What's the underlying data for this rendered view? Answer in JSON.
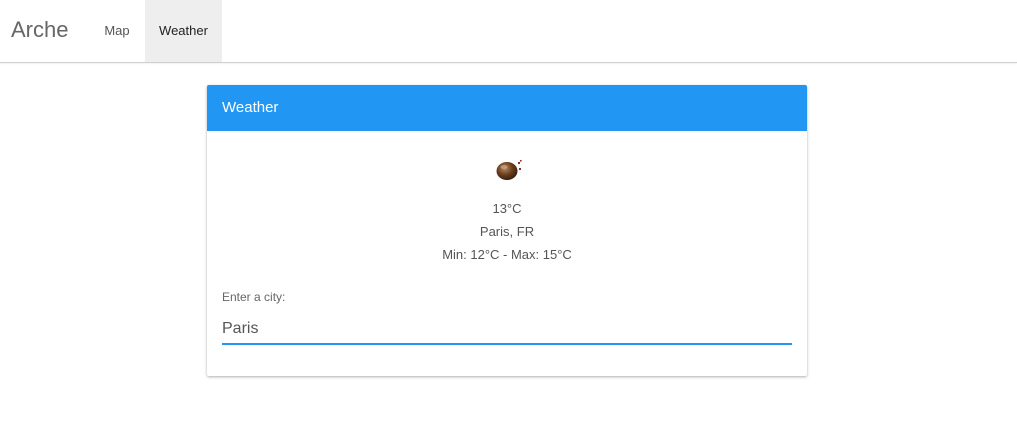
{
  "app": {
    "brand": "Arche"
  },
  "nav": {
    "tabs": [
      {
        "label": "Map",
        "active": false
      },
      {
        "label": "Weather",
        "active": true
      }
    ]
  },
  "card": {
    "title": "Weather",
    "icon": "weather-condition-icon",
    "temperature": "13°C",
    "location": "Paris, FR",
    "min_max": "Min: 12°C - Max: 15°C",
    "input_label": "Enter a city:",
    "input_value": "Paris"
  },
  "colors": {
    "accent": "#2196f3",
    "header_text": "#ffffff",
    "active_tab_bg": "#eeeeee"
  }
}
